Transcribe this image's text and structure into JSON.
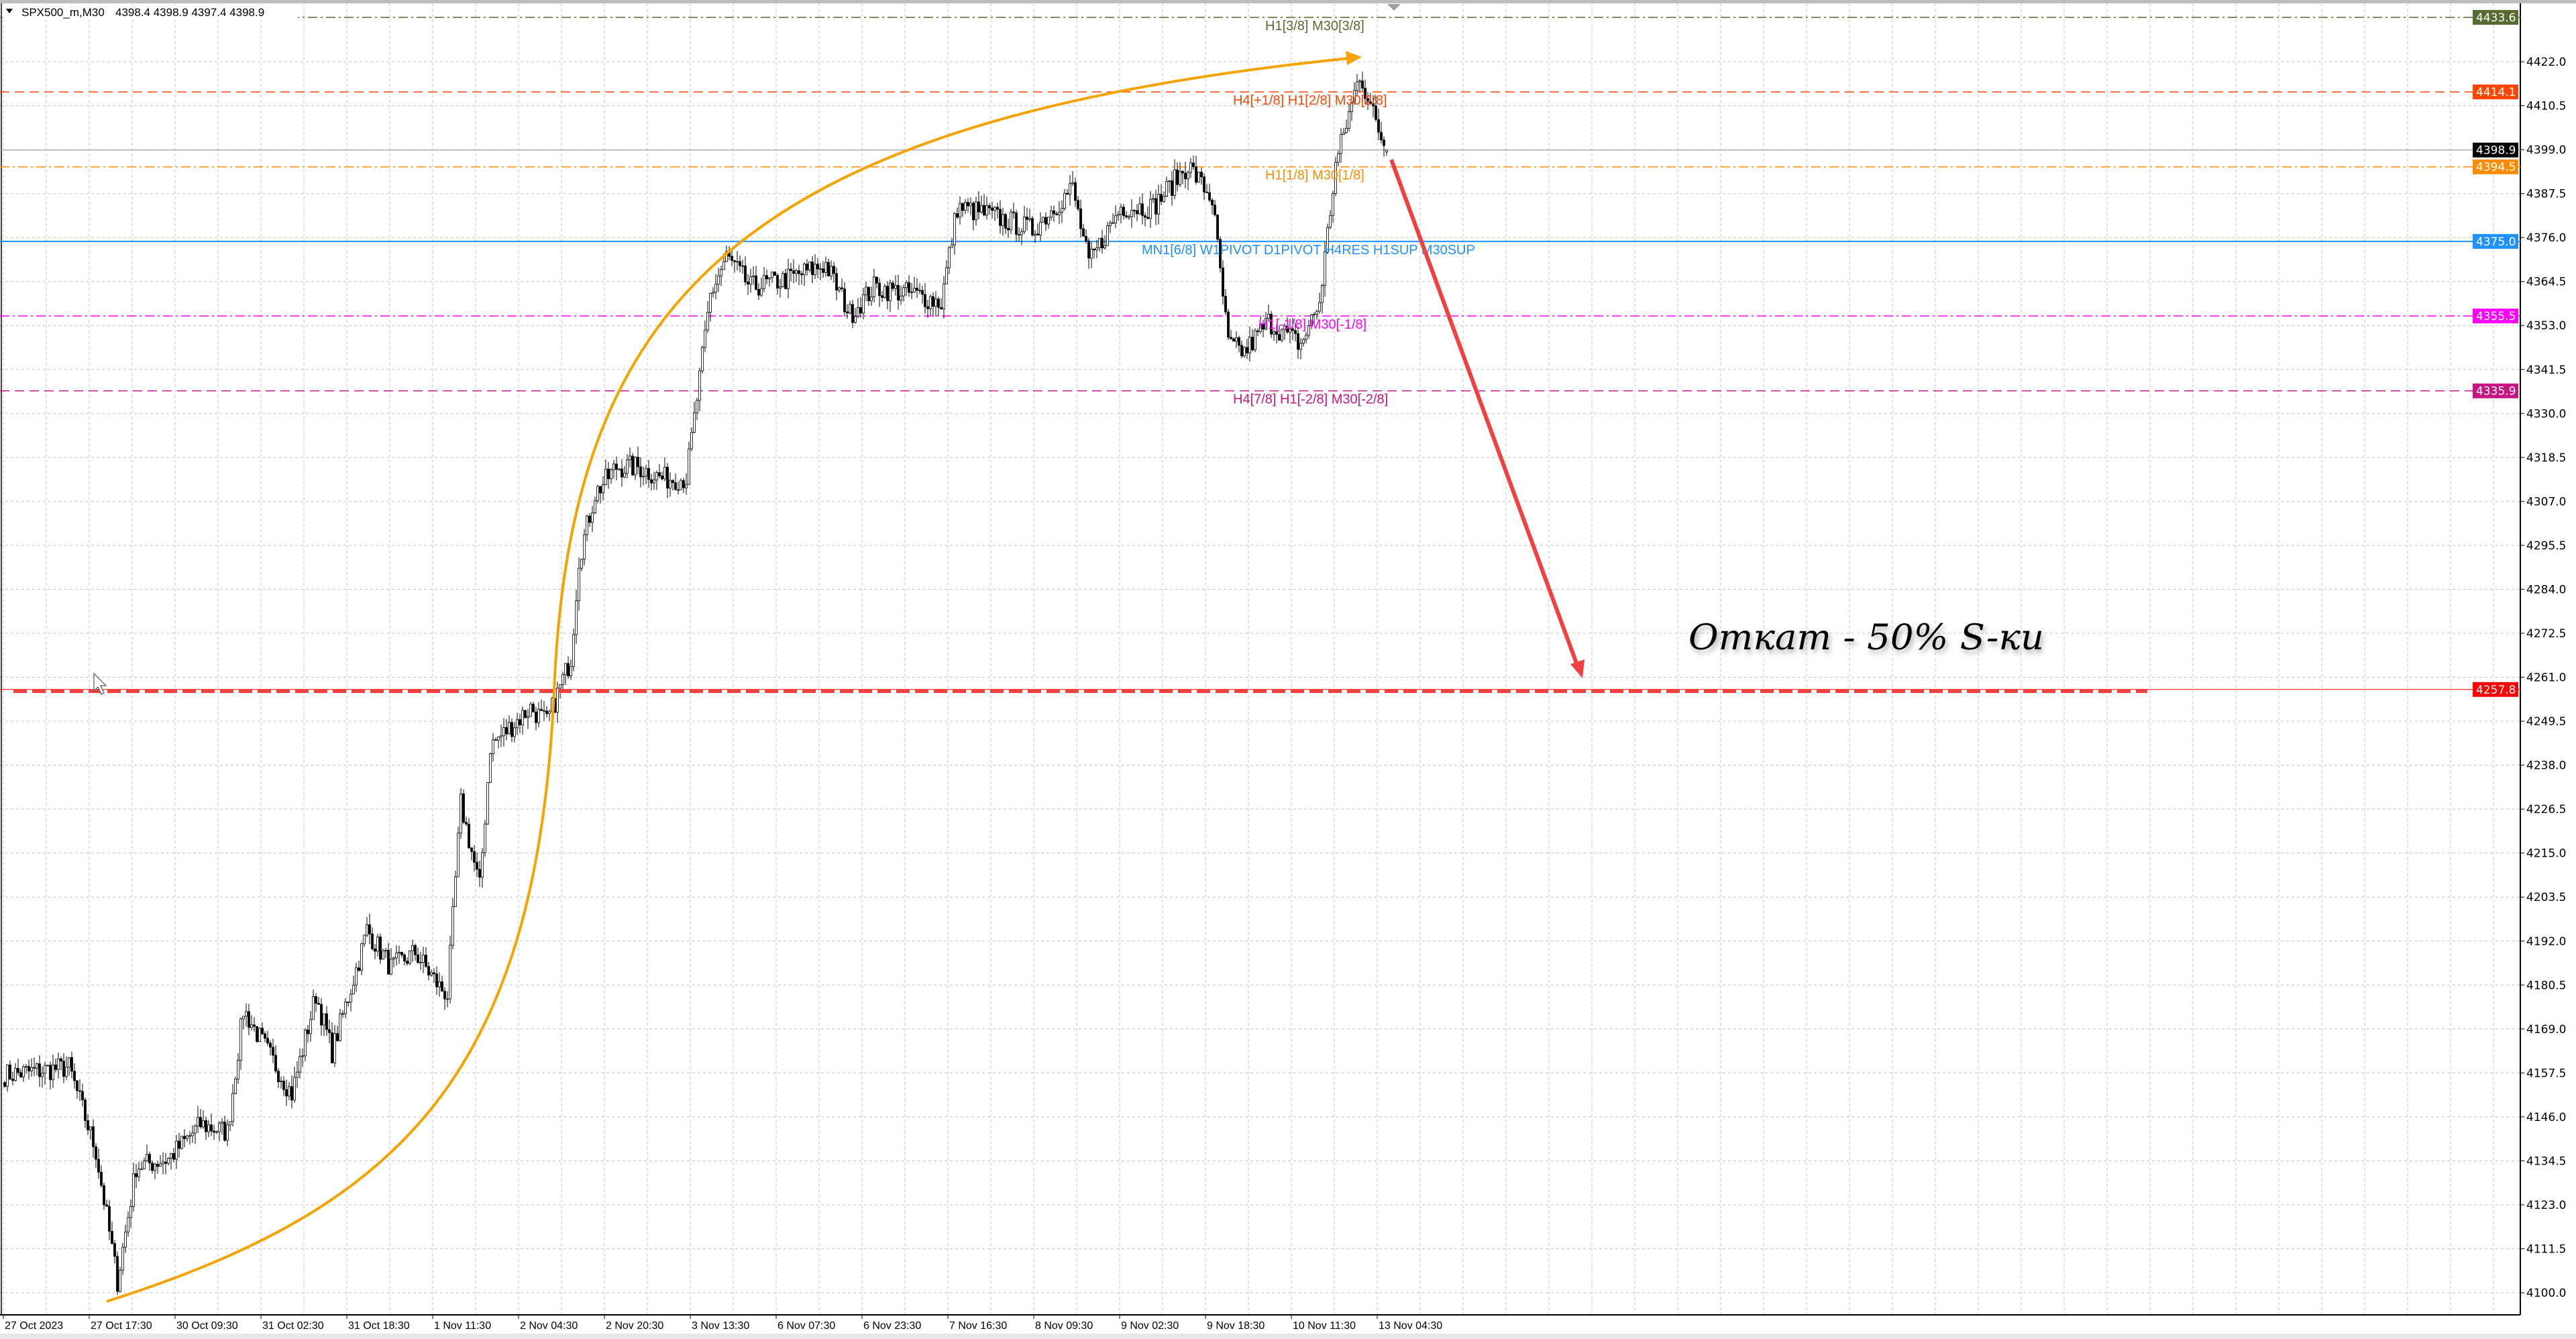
{
  "header": {
    "symbol": "SPX500_m,M30",
    "ohlc": "4398.4 4398.9 4397.4 4398.9",
    "menu_icon": "triangle-down-icon"
  },
  "annotation": {
    "text": "Откат - 50% S-ки",
    "arrow_color": "#f04040",
    "curve_color": "#f5a300"
  },
  "levels": [
    {
      "price": 4433.6,
      "tag": "4433.6",
      "label": "H1[3/8] M30[3/8]",
      "color": "#556b2f",
      "style": "dashdot"
    },
    {
      "price": 4414.1,
      "tag": "4414.1",
      "label": "H4[+1/8] H1[2/8] M30[2/8]",
      "color": "#ff4500",
      "style": "dash"
    },
    {
      "price": 4398.9,
      "tag": "4398.9",
      "label": "",
      "color": "#000000",
      "style": "current"
    },
    {
      "price": 4394.5,
      "tag": "4394.5",
      "label": "H1[1/8] M30[1/8]",
      "color": "#ff8c00",
      "style": "dashdot"
    },
    {
      "price": 4375.0,
      "tag": "4375.0",
      "label": "MN1[6/8] W1PIVOT D1PIVOT H4RES H1SUP M30SUP",
      "color": "#1e90ff",
      "style": "solid"
    },
    {
      "price": 4355.5,
      "tag": "4355.5",
      "label": "H1[-1/8] M30[-1/8]",
      "color": "#ff00ff",
      "style": "dashdot"
    },
    {
      "price": 4335.9,
      "tag": "4335.9",
      "label": "H4[7/8] H1[-2/8] M30[-2/8]",
      "color": "#c71585",
      "style": "dash"
    },
    {
      "price": 4257.8,
      "tag": "4257.8",
      "label": "",
      "color": "#ff0000",
      "style": "target"
    }
  ],
  "chart_data": {
    "type": "candlestick",
    "title": "",
    "timeframe": "M30",
    "ylim": [
      4100.0,
      4433.6
    ],
    "grid": true,
    "y_ticks": [
      "4100.0",
      "4111.5",
      "4123.0",
      "4134.5",
      "4146.0",
      "4157.5",
      "4169.0",
      "4180.5",
      "4192.0",
      "4203.5",
      "4215.0",
      "4226.5",
      "4238.0",
      "4249.5",
      "4261.0",
      "4272.5",
      "4284.0",
      "4295.5",
      "4307.0",
      "4318.5",
      "4330.0",
      "4341.5",
      "4353.0",
      "4364.5",
      "4376.0",
      "4387.5",
      "4399.0",
      "4410.5",
      "4422.0"
    ],
    "x_ticks": [
      "27 Oct 2023",
      "27 Oct 17:30",
      "30 Oct 09:30",
      "31 Oct 02:30",
      "31 Oct 18:30",
      "1 Nov 11:30",
      "2 Nov 04:30",
      "2 Nov 20:30",
      "3 Nov 13:30",
      "6 Nov 07:30",
      "6 Nov 23:30",
      "7 Nov 16:30",
      "8 Nov 09:30",
      "9 Nov 02:30",
      "9 Nov 18:30",
      "10 Nov 11:30",
      "13 Nov 04:30"
    ],
    "last_bar": {
      "open": 4398.4,
      "high": 4398.9,
      "low": 4397.4,
      "close": 4398.9
    },
    "close_path": [
      {
        "bar": 0,
        "close": 4157
      },
      {
        "bar": 24,
        "close": 4159
      },
      {
        "bar": 34,
        "close": 4137
      },
      {
        "bar": 42,
        "close": 4103
      },
      {
        "bar": 49,
        "close": 4133
      },
      {
        "bar": 61,
        "close": 4135
      },
      {
        "bar": 73,
        "close": 4144
      },
      {
        "bar": 83,
        "close": 4142
      },
      {
        "bar": 89,
        "close": 4174
      },
      {
        "bar": 98,
        "close": 4163
      },
      {
        "bar": 107,
        "close": 4152
      },
      {
        "bar": 116,
        "close": 4178
      },
      {
        "bar": 122,
        "close": 4163
      },
      {
        "bar": 132,
        "close": 4187
      },
      {
        "bar": 135,
        "close": 4195
      },
      {
        "bar": 144,
        "close": 4185
      },
      {
        "bar": 153,
        "close": 4189
      },
      {
        "bar": 162,
        "close": 4180
      },
      {
        "bar": 165,
        "close": 4178
      },
      {
        "bar": 170,
        "close": 4228
      },
      {
        "bar": 177,
        "close": 4206
      },
      {
        "bar": 181,
        "close": 4243
      },
      {
        "bar": 187,
        "close": 4247
      },
      {
        "bar": 196,
        "close": 4253
      },
      {
        "bar": 202,
        "close": 4249
      },
      {
        "bar": 211,
        "close": 4266
      },
      {
        "bar": 214,
        "close": 4292
      },
      {
        "bar": 220,
        "close": 4309
      },
      {
        "bar": 228,
        "close": 4316
      },
      {
        "bar": 236,
        "close": 4316
      },
      {
        "bar": 245,
        "close": 4313
      },
      {
        "bar": 254,
        "close": 4313
      },
      {
        "bar": 259,
        "close": 4339
      },
      {
        "bar": 263,
        "close": 4361
      },
      {
        "bar": 269,
        "close": 4371
      },
      {
        "bar": 278,
        "close": 4363
      },
      {
        "bar": 291,
        "close": 4365
      },
      {
        "bar": 306,
        "close": 4369
      },
      {
        "bar": 315,
        "close": 4356
      },
      {
        "bar": 324,
        "close": 4363
      },
      {
        "bar": 340,
        "close": 4361
      },
      {
        "bar": 349,
        "close": 4359
      },
      {
        "bar": 355,
        "close": 4384
      },
      {
        "bar": 367,
        "close": 4382
      },
      {
        "bar": 383,
        "close": 4378
      },
      {
        "bar": 398,
        "close": 4389
      },
      {
        "bar": 404,
        "close": 4369
      },
      {
        "bar": 416,
        "close": 4384
      },
      {
        "bar": 428,
        "close": 4384
      },
      {
        "bar": 441,
        "close": 4395
      },
      {
        "bar": 450,
        "close": 4386
      },
      {
        "bar": 456,
        "close": 4348
      },
      {
        "bar": 462,
        "close": 4346
      },
      {
        "bar": 471,
        "close": 4354
      },
      {
        "bar": 483,
        "close": 4348
      },
      {
        "bar": 490,
        "close": 4359
      },
      {
        "bar": 496,
        "close": 4395
      },
      {
        "bar": 505,
        "close": 4419
      },
      {
        "bar": 511,
        "close": 4406
      },
      {
        "bar": 515,
        "close": 4398.9
      }
    ]
  }
}
